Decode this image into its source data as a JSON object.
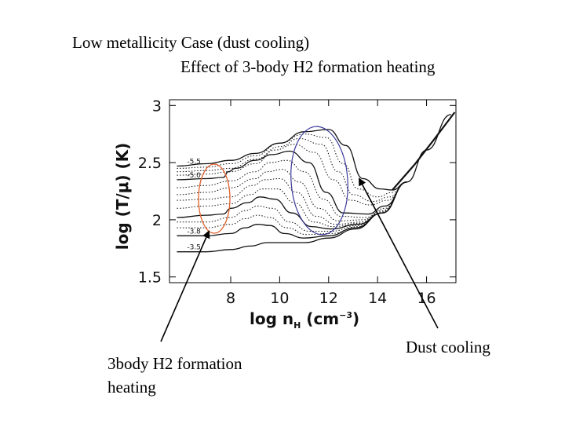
{
  "slide": {
    "title_line1": "Low metallicity Case (dust cooling)",
    "title_line2": "Effect of 3-body H2 formation heating",
    "annotation_left_line1": "3body H2 formation",
    "annotation_left_line2": "heating",
    "annotation_right": "Dust cooling"
  },
  "chart_data": {
    "type": "line",
    "xlabel": "log n_H (cm^-3)",
    "ylabel": "log (T/μ) (K)",
    "xlim": [
      5.5,
      17.2
    ],
    "ylim": [
      1.45,
      3.05
    ],
    "x_ticks": [
      "8",
      "10",
      "12",
      "14",
      "16"
    ],
    "y_ticks": [
      "1.5",
      "2",
      "2.5",
      "3"
    ],
    "curve_labels": [
      "-5.5",
      "-5.0",
      "-3.8",
      "-3.5"
    ],
    "grid": false,
    "series": [
      {
        "label": "-5.5",
        "style": "solid",
        "points": [
          [
            5.8,
            2.47
          ],
          [
            7,
            2.49
          ],
          [
            8,
            2.52
          ],
          [
            9,
            2.58
          ],
          [
            10,
            2.67
          ],
          [
            11,
            2.77
          ],
          [
            12,
            2.79
          ],
          [
            12.7,
            2.65
          ],
          [
            13.4,
            2.36
          ],
          [
            14.1,
            2.27
          ],
          [
            14.6,
            2.26
          ],
          [
            15.2,
            2.33
          ],
          [
            16,
            2.61
          ],
          [
            17,
            2.92
          ]
        ]
      },
      {
        "label": "",
        "style": "dotted",
        "points": [
          [
            5.8,
            2.45
          ],
          [
            7,
            2.46
          ],
          [
            8,
            2.49
          ],
          [
            9,
            2.56
          ],
          [
            10,
            2.67
          ],
          [
            11,
            2.75
          ],
          [
            11.9,
            2.72
          ],
          [
            12.6,
            2.49
          ],
          [
            13.2,
            2.27
          ],
          [
            14,
            2.2
          ],
          [
            14.6,
            2.24
          ],
          [
            15.2,
            2.33
          ]
        ]
      },
      {
        "label": "",
        "style": "dotted",
        "points": [
          [
            5.8,
            2.42
          ],
          [
            7,
            2.43
          ],
          [
            8,
            2.45
          ],
          [
            9,
            2.53
          ],
          [
            10,
            2.64
          ],
          [
            10.8,
            2.71
          ],
          [
            11.7,
            2.66
          ],
          [
            12.4,
            2.42
          ],
          [
            13,
            2.22
          ],
          [
            13.8,
            2.16
          ],
          [
            14.5,
            2.2
          ],
          [
            15.2,
            2.33
          ]
        ]
      },
      {
        "label": "",
        "style": "dotted",
        "points": [
          [
            5.8,
            2.39
          ],
          [
            7,
            2.4
          ],
          [
            8,
            2.42
          ],
          [
            9,
            2.49
          ],
          [
            9.8,
            2.61
          ],
          [
            10.6,
            2.66
          ],
          [
            11.4,
            2.59
          ],
          [
            12.2,
            2.35
          ],
          [
            12.9,
            2.17
          ],
          [
            13.7,
            2.13
          ],
          [
            14.4,
            2.17
          ],
          [
            15.2,
            2.33
          ]
        ]
      },
      {
        "label": "-5.0",
        "style": "solid",
        "points": [
          [
            5.8,
            2.35
          ],
          [
            7,
            2.36
          ],
          [
            7.7,
            2.37
          ],
          [
            7.9,
            2.42
          ],
          [
            8.2,
            2.45
          ],
          [
            9,
            2.52
          ],
          [
            9.7,
            2.57
          ],
          [
            10.4,
            2.6
          ],
          [
            11.2,
            2.5
          ],
          [
            11.9,
            2.24
          ],
          [
            12.6,
            2.06
          ],
          [
            13.6,
            2.05
          ],
          [
            14.3,
            2.12
          ],
          [
            15.2,
            2.33
          ]
        ]
      },
      {
        "label": "",
        "style": "dotted",
        "points": [
          [
            5.8,
            2.28
          ],
          [
            7,
            2.3
          ],
          [
            8,
            2.34
          ],
          [
            9,
            2.42
          ],
          [
            9.6,
            2.5
          ],
          [
            10.3,
            2.52
          ],
          [
            11,
            2.42
          ],
          [
            11.8,
            2.18
          ],
          [
            12.5,
            2.03
          ],
          [
            13.5,
            2.02
          ],
          [
            14.3,
            2.1
          ],
          [
            15.2,
            2.33
          ]
        ]
      },
      {
        "label": "",
        "style": "dotted",
        "points": [
          [
            5.8,
            2.22
          ],
          [
            7,
            2.24
          ],
          [
            8,
            2.28
          ],
          [
            9,
            2.36
          ],
          [
            9.5,
            2.42
          ],
          [
            10.1,
            2.44
          ],
          [
            10.8,
            2.33
          ],
          [
            11.6,
            2.1
          ],
          [
            12.4,
            1.99
          ],
          [
            13.4,
            2.0
          ],
          [
            14.2,
            2.08
          ],
          [
            15.2,
            2.33
          ]
        ]
      },
      {
        "label": "",
        "style": "dotted",
        "points": [
          [
            5.8,
            2.17
          ],
          [
            7,
            2.18
          ],
          [
            8,
            2.2
          ],
          [
            8.9,
            2.3
          ],
          [
            9.4,
            2.35
          ],
          [
            10,
            2.36
          ],
          [
            10.7,
            2.24
          ],
          [
            11.5,
            2.03
          ],
          [
            12.3,
            1.96
          ],
          [
            13.3,
            1.98
          ],
          [
            14.2,
            2.07
          ],
          [
            15.2,
            2.33
          ]
        ]
      },
      {
        "label": "",
        "style": "dotted",
        "points": [
          [
            5.8,
            2.1
          ],
          [
            7,
            2.12
          ],
          [
            8,
            2.14
          ],
          [
            8.8,
            2.22
          ],
          [
            9.3,
            2.27
          ],
          [
            9.9,
            2.27
          ],
          [
            10.6,
            2.15
          ],
          [
            11.4,
            1.98
          ],
          [
            12.2,
            1.94
          ],
          [
            13.3,
            1.97
          ],
          [
            14.2,
            2.06
          ],
          [
            15.2,
            2.33
          ]
        ]
      },
      {
        "label": "",
        "style": "solid",
        "points": [
          [
            5.8,
            2.02
          ],
          [
            7,
            2.04
          ],
          [
            7.7,
            2.05
          ],
          [
            8,
            2.1
          ],
          [
            8.7,
            2.15
          ],
          [
            9.2,
            2.2
          ],
          [
            9.8,
            2.18
          ],
          [
            10.5,
            2.06
          ],
          [
            11.3,
            1.94
          ],
          [
            12.1,
            1.92
          ],
          [
            13.2,
            1.96
          ],
          [
            14.2,
            2.06
          ],
          [
            15.2,
            2.33
          ]
        ]
      },
      {
        "label": "",
        "style": "dotted",
        "points": [
          [
            5.8,
            1.98
          ],
          [
            7,
            1.98
          ],
          [
            8,
            2.02
          ],
          [
            8.6,
            2.08
          ],
          [
            9.1,
            2.12
          ],
          [
            9.7,
            2.1
          ],
          [
            10.4,
            1.98
          ],
          [
            11.2,
            1.9
          ],
          [
            12.1,
            1.9
          ],
          [
            13.2,
            1.95
          ],
          [
            14.2,
            2.06
          ],
          [
            15.2,
            2.33
          ]
        ]
      },
      {
        "label": "",
        "style": "dotted",
        "points": [
          [
            5.8,
            1.93
          ],
          [
            7,
            1.93
          ],
          [
            8,
            1.96
          ],
          [
            8.6,
            2.01
          ],
          [
            9.1,
            2.04
          ],
          [
            9.6,
            2.02
          ],
          [
            10.3,
            1.93
          ],
          [
            11.1,
            1.87
          ],
          [
            12.1,
            1.88
          ],
          [
            13.2,
            1.94
          ],
          [
            14.2,
            2.06
          ],
          [
            15.2,
            2.33
          ]
        ]
      },
      {
        "label": "-3.8",
        "style": "solid",
        "points": [
          [
            5.8,
            1.86
          ],
          [
            7,
            1.86
          ],
          [
            8,
            1.88
          ],
          [
            8.6,
            1.93
          ],
          [
            9.1,
            1.96
          ],
          [
            9.6,
            1.95
          ],
          [
            10.2,
            1.88
          ],
          [
            11,
            1.84
          ],
          [
            12,
            1.86
          ],
          [
            13.1,
            1.93
          ],
          [
            14.2,
            2.06
          ],
          [
            15.2,
            2.33
          ]
        ]
      },
      {
        "label": "-3.5",
        "style": "solid",
        "points": [
          [
            5.8,
            1.72
          ],
          [
            7,
            1.72
          ],
          [
            8,
            1.74
          ],
          [
            8.8,
            1.77
          ],
          [
            9.5,
            1.8
          ],
          [
            10.2,
            1.8
          ],
          [
            11,
            1.8
          ],
          [
            12,
            1.84
          ],
          [
            13.1,
            1.92
          ],
          [
            14.2,
            2.06
          ],
          [
            15.2,
            2.33
          ]
        ]
      }
    ]
  },
  "ellipses": [
    {
      "name": "3body-h2-heating-ellipse",
      "color": "#e0602a"
    },
    {
      "name": "dust-cooling-ellipse",
      "color": "#3a3a9a"
    }
  ]
}
